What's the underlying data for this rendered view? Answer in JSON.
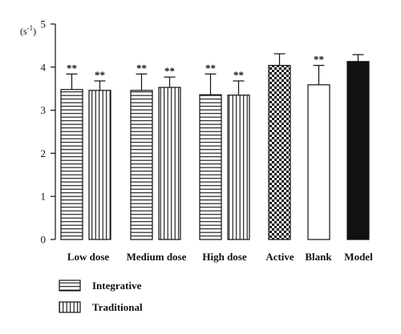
{
  "chart_data": {
    "type": "bar",
    "title": "",
    "xlabel": "",
    "ylabel": "(s-1)",
    "ylabel_base": "(s",
    "ylabel_sup": "-1",
    "ylabel_close": ")",
    "ylim": [
      0,
      5
    ],
    "yticks": [
      "0",
      "1",
      "2",
      "3",
      "4",
      "5"
    ],
    "grid": false,
    "legend_position": "bottom-left",
    "groups": [
      {
        "label": "Low dose",
        "bars": [
          {
            "series": "Integrative",
            "pattern": "hlines",
            "value": 3.48,
            "error": 0.36,
            "annotation": "**"
          },
          {
            "series": "Traditional",
            "pattern": "vlines",
            "value": 3.46,
            "error": 0.22,
            "annotation": "**"
          }
        ]
      },
      {
        "label": "Medium dose",
        "bars": [
          {
            "series": "Integrative",
            "pattern": "hlines",
            "value": 3.46,
            "error": 0.38,
            "annotation": "**"
          },
          {
            "series": "Traditional",
            "pattern": "vlines",
            "value": 3.53,
            "error": 0.24,
            "annotation": "**"
          }
        ]
      },
      {
        "label": "High dose",
        "bars": [
          {
            "series": "Integrative",
            "pattern": "hlines",
            "value": 3.36,
            "error": 0.48,
            "annotation": "**"
          },
          {
            "series": "Traditional",
            "pattern": "vlines",
            "value": 3.35,
            "error": 0.33,
            "annotation": "**"
          }
        ]
      },
      {
        "label": "Active",
        "bars": [
          {
            "series": "",
            "pattern": "checker",
            "value": 4.04,
            "error": 0.27,
            "annotation": ""
          }
        ]
      },
      {
        "label": "Blank",
        "bars": [
          {
            "series": "",
            "pattern": "white",
            "value": 3.59,
            "error": 0.45,
            "annotation": "**"
          }
        ]
      },
      {
        "label": "Model",
        "bars": [
          {
            "series": "",
            "pattern": "black",
            "value": 4.13,
            "error": 0.16,
            "annotation": ""
          }
        ]
      }
    ],
    "legend": [
      {
        "name": "Integrative",
        "pattern": "hlines"
      },
      {
        "name": "Traditional",
        "pattern": "vlines"
      }
    ]
  },
  "colors": {
    "stroke": "#111111",
    "fill_white": "#ffffff",
    "fill_black": "#111111"
  }
}
